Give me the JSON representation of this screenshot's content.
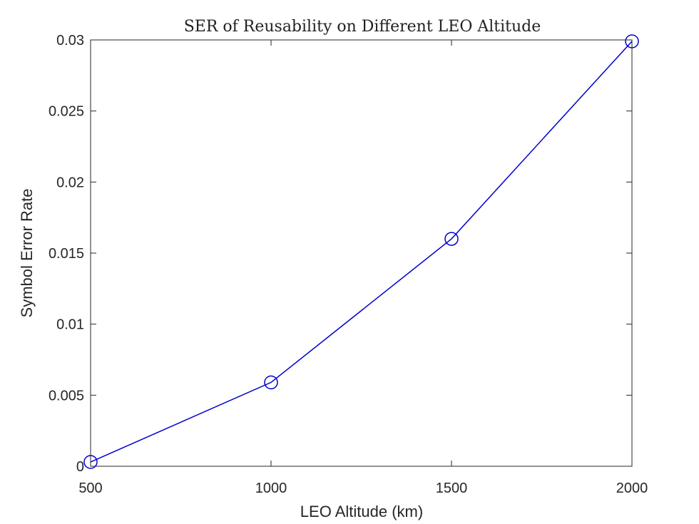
{
  "chart_data": {
    "type": "line",
    "title": "SER of Reusability on Different LEO Altitude",
    "xlabel": "LEO Altitude (km)",
    "ylabel": "Symbol Error Rate",
    "x": [
      500,
      1000,
      1500,
      2000
    ],
    "series": [
      {
        "values": [
          0.0003,
          0.0059,
          0.016,
          0.0299
        ],
        "color": "#0000cc",
        "marker": "circle"
      }
    ],
    "xlim": [
      500,
      2000
    ],
    "ylim": [
      0,
      0.03
    ],
    "xticks": [
      500,
      1000,
      1500,
      2000
    ],
    "xtick_labels": [
      "500",
      "1000",
      "1500",
      "2000"
    ],
    "yticks": [
      0,
      0.005,
      0.01,
      0.015,
      0.02,
      0.025,
      0.03
    ],
    "ytick_labels": [
      "0",
      "0.005",
      "0.01",
      "0.015",
      "0.02",
      "0.025",
      "0.03"
    ],
    "grid": false,
    "legend": "none"
  }
}
